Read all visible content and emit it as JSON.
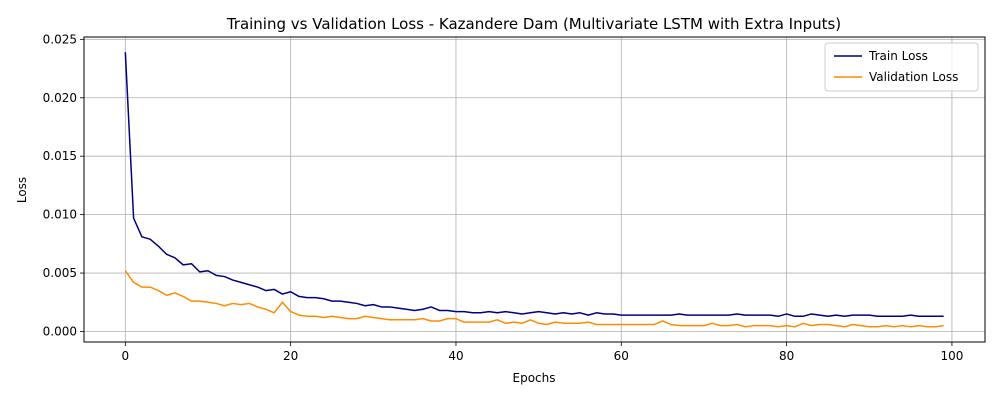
{
  "chart_data": {
    "type": "line",
    "title": "Training vs Validation Loss - Kazandere Dam (Multivariate LSTM with Extra Inputs)",
    "xlabel": "Epochs",
    "ylabel": "Loss",
    "xlim": [
      -5,
      104
    ],
    "ylim": [
      -0.0009,
      0.0252
    ],
    "xticks": [
      0,
      20,
      40,
      60,
      80,
      100
    ],
    "xtick_labels": [
      "0",
      "20",
      "40",
      "60",
      "80",
      "100"
    ],
    "yticks": [
      0.0,
      0.005,
      0.01,
      0.015,
      0.02,
      0.025
    ],
    "ytick_labels": [
      "0.000",
      "0.005",
      "0.010",
      "0.015",
      "0.020",
      "0.025"
    ],
    "grid": true,
    "legend_position": "top-right",
    "series": [
      {
        "name": "Train Loss",
        "color": "#000080",
        "values": [
          0.0239,
          0.0097,
          0.0081,
          0.0079,
          0.0073,
          0.0066,
          0.0063,
          0.0057,
          0.0058,
          0.0051,
          0.0052,
          0.0048,
          0.0047,
          0.0044,
          0.0042,
          0.004,
          0.0038,
          0.0035,
          0.0036,
          0.0032,
          0.0034,
          0.003,
          0.0029,
          0.0029,
          0.0028,
          0.0026,
          0.0026,
          0.0025,
          0.0024,
          0.0022,
          0.0023,
          0.0021,
          0.0021,
          0.002,
          0.0019,
          0.0018,
          0.0019,
          0.0021,
          0.0018,
          0.0018,
          0.0017,
          0.0017,
          0.0016,
          0.0016,
          0.0017,
          0.0016,
          0.0017,
          0.0016,
          0.0015,
          0.0016,
          0.0017,
          0.0016,
          0.0015,
          0.0016,
          0.0015,
          0.0016,
          0.0014,
          0.0016,
          0.0015,
          0.0015,
          0.0014,
          0.0014,
          0.0014,
          0.0014,
          0.0014,
          0.0014,
          0.0014,
          0.0015,
          0.0014,
          0.0014,
          0.0014,
          0.0014,
          0.0014,
          0.0014,
          0.0015,
          0.0014,
          0.0014,
          0.0014,
          0.0014,
          0.0013,
          0.0015,
          0.0013,
          0.0013,
          0.0015,
          0.0014,
          0.0013,
          0.0014,
          0.0013,
          0.0014,
          0.0014,
          0.0014,
          0.0013,
          0.0013,
          0.0013,
          0.0013,
          0.0014,
          0.0013,
          0.0013,
          0.0013,
          0.0013
        ]
      },
      {
        "name": "Validation Loss",
        "color": "#ff8c00",
        "values": [
          0.0052,
          0.0042,
          0.0038,
          0.0038,
          0.0035,
          0.0031,
          0.0033,
          0.003,
          0.0026,
          0.0026,
          0.0025,
          0.0024,
          0.0022,
          0.0024,
          0.0023,
          0.0024,
          0.0021,
          0.0019,
          0.0016,
          0.0025,
          0.0017,
          0.0014,
          0.0013,
          0.0013,
          0.0012,
          0.0013,
          0.0012,
          0.0011,
          0.0011,
          0.0013,
          0.0012,
          0.0011,
          0.001,
          0.001,
          0.001,
          0.001,
          0.0011,
          0.0009,
          0.0009,
          0.0011,
          0.0011,
          0.0008,
          0.0008,
          0.0008,
          0.0008,
          0.001,
          0.0007,
          0.0008,
          0.0007,
          0.001,
          0.0007,
          0.0006,
          0.0008,
          0.0007,
          0.0007,
          0.0007,
          0.0008,
          0.0006,
          0.0006,
          0.0006,
          0.0006,
          0.0006,
          0.0006,
          0.0006,
          0.0006,
          0.0009,
          0.0006,
          0.0005,
          0.0005,
          0.0005,
          0.0005,
          0.0007,
          0.0005,
          0.0005,
          0.0006,
          0.0004,
          0.0005,
          0.0005,
          0.0005,
          0.0004,
          0.0005,
          0.0004,
          0.0007,
          0.0005,
          0.0006,
          0.0006,
          0.0005,
          0.0004,
          0.0006,
          0.0005,
          0.0004,
          0.0004,
          0.0005,
          0.0004,
          0.0005,
          0.0004,
          0.0005,
          0.0004,
          0.0004,
          0.0005
        ]
      }
    ]
  }
}
